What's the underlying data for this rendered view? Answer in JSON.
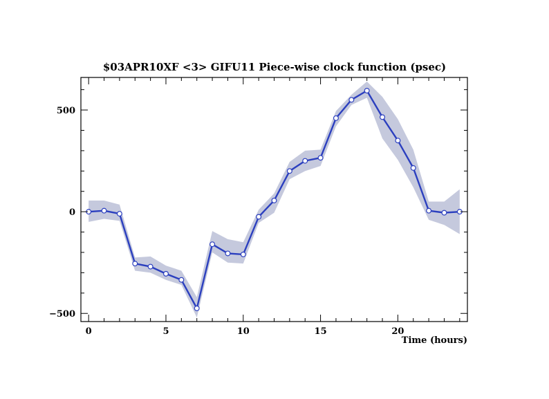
{
  "chart_data": {
    "type": "line",
    "title": "$03APR10XF <3>  GIFU11    Piece-wise clock function (psec)",
    "xlabel": "Time (hours)",
    "ylabel": "",
    "xlim": [
      -0.5,
      24.5
    ],
    "ylim": [
      -540,
      660
    ],
    "x_ticks": [
      0,
      5,
      10,
      15,
      20
    ],
    "y_ticks": [
      -500,
      0,
      500
    ],
    "grid": false,
    "legend": "none",
    "colors": {
      "line": "#2b3fbf",
      "band": "#c5c9dd",
      "marker_fill": "#ffffff",
      "marker_stroke": "#2b3fbf"
    },
    "series": [
      {
        "x": [
          0,
          1,
          2,
          3,
          4,
          5,
          6,
          7,
          8,
          9,
          10,
          11,
          12,
          13,
          14,
          15,
          16,
          17,
          18,
          19,
          20,
          21,
          22,
          23,
          24
        ],
        "values": [
          0,
          5,
          -10,
          -255,
          -270,
          -305,
          -335,
          -475,
          -160,
          -205,
          -210,
          -25,
          55,
          200,
          250,
          265,
          460,
          550,
          595,
          465,
          350,
          215,
          5,
          -5,
          0
        ],
        "upper": [
          55,
          55,
          35,
          -225,
          -220,
          -265,
          -290,
          -420,
          -95,
          -135,
          -150,
          10,
          90,
          245,
          300,
          305,
          495,
          575,
          640,
          565,
          455,
          305,
          50,
          50,
          110
        ],
        "lower": [
          -50,
          -35,
          -45,
          -290,
          -300,
          -335,
          -360,
          -520,
          -200,
          -250,
          -255,
          -55,
          -5,
          160,
          200,
          225,
          420,
          525,
          560,
          360,
          255,
          120,
          -40,
          -65,
          -110
        ]
      }
    ]
  }
}
